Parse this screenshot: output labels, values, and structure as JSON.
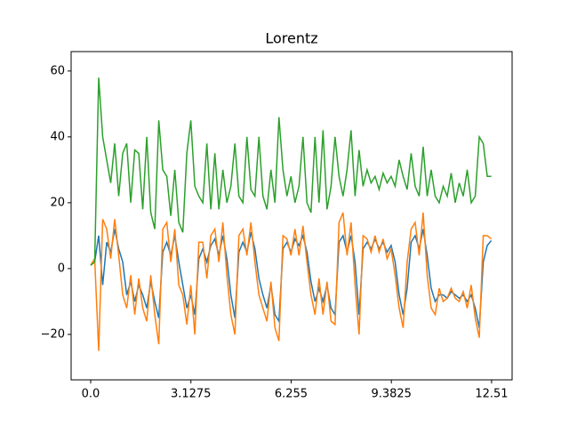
{
  "chart_data": {
    "type": "line",
    "title": "Lorentz",
    "x": [
      0,
      0.125,
      0.25,
      0.375,
      0.5,
      0.625,
      0.75,
      0.875,
      1,
      1.125,
      1.25,
      1.375,
      1.5,
      1.625,
      1.75,
      1.875,
      2,
      2.125,
      2.25,
      2.375,
      2.5,
      2.625,
      2.75,
      2.875,
      3,
      3.125,
      3.25,
      3.375,
      3.5,
      3.625,
      3.75,
      3.875,
      4,
      4.125,
      4.25,
      4.375,
      4.5,
      4.625,
      4.75,
      4.875,
      5,
      5.125,
      5.25,
      5.375,
      5.5,
      5.625,
      5.75,
      5.875,
      6,
      6.125,
      6.25,
      6.375,
      6.5,
      6.625,
      6.75,
      6.875,
      7,
      7.125,
      7.25,
      7.375,
      7.5,
      7.625,
      7.75,
      7.875,
      8,
      8.125,
      8.25,
      8.375,
      8.5,
      8.625,
      8.75,
      8.875,
      9,
      9.125,
      9.25,
      9.375,
      9.5,
      9.625,
      9.75,
      9.875,
      10,
      10.125,
      10.25,
      10.375,
      10.5,
      10.625,
      10.75,
      10.875,
      11,
      11.125,
      11.25,
      11.375,
      11.5,
      11.625,
      11.75,
      11.875,
      12,
      12.125,
      12.25,
      12.375,
      12.5
    ],
    "series": [
      {
        "color": "#1f77b4",
        "values": [
          1,
          2,
          10,
          -5,
          8,
          5,
          12,
          6,
          2,
          -8,
          -4,
          -10,
          -5,
          -8,
          -12,
          -4,
          -10,
          -15,
          5,
          8,
          4,
          10,
          2,
          -5,
          -12,
          -8,
          -14,
          3,
          6,
          2,
          7,
          9,
          4,
          10,
          3,
          -8,
          -15,
          5,
          8,
          5,
          11,
          6,
          -3,
          -8,
          -12,
          -5,
          -14,
          -16,
          6,
          8,
          5,
          9,
          7,
          10,
          5,
          -4,
          -10,
          -6,
          -10,
          -5,
          -12,
          -14,
          8,
          10,
          5,
          10,
          2,
          -14,
          6,
          8,
          6,
          9,
          6,
          8,
          5,
          7,
          2,
          -8,
          -14,
          -6,
          8,
          10,
          6,
          12,
          4,
          -6,
          -10,
          -8,
          -8,
          -9,
          -7,
          -8,
          -9,
          -8,
          -10,
          -8,
          -12,
          -18,
          2,
          7,
          8.5
        ]
      },
      {
        "color": "#ff7f0e",
        "values": [
          1,
          3,
          -25,
          15,
          12,
          3,
          15,
          4,
          -8,
          -12,
          -2,
          -14,
          -3,
          -12,
          -16,
          -2,
          -14,
          -23,
          12,
          14,
          2,
          12,
          -5,
          -8,
          -17,
          -5,
          -20,
          8,
          8,
          -3,
          10,
          12,
          2,
          14,
          -2,
          -14,
          -20,
          10,
          12,
          4,
          14,
          2,
          -8,
          -12,
          -16,
          -4,
          -18,
          -22,
          10,
          9,
          4,
          12,
          4,
          13,
          2,
          -8,
          -14,
          -3,
          -14,
          -4,
          -16,
          -17,
          14,
          17,
          4,
          14,
          -5,
          -20,
          10,
          9,
          5,
          10,
          5,
          9,
          3,
          6,
          -2,
          -12,
          -18,
          2,
          12,
          14,
          4,
          17,
          -2,
          -12,
          -14,
          -6,
          -10,
          -9,
          -6,
          -9,
          -10,
          -7,
          -12,
          -5,
          -15,
          -21,
          10,
          10,
          9
        ]
      },
      {
        "color": "#2ca02c",
        "values": [
          1,
          2,
          58,
          40,
          33,
          26,
          38,
          22,
          35,
          38,
          20,
          36,
          35,
          18,
          40,
          17,
          12,
          45,
          30,
          28,
          16,
          30,
          14,
          11,
          35,
          45,
          25,
          22,
          20,
          38,
          18,
          35,
          18,
          30,
          20,
          25,
          38,
          22,
          20,
          40,
          24,
          22,
          40,
          22,
          18,
          30,
          20,
          46,
          30,
          22,
          28,
          20,
          25,
          40,
          20,
          17,
          40,
          20,
          42,
          18,
          25,
          40,
          28,
          22,
          30,
          42,
          22,
          36,
          25,
          30,
          26,
          28,
          24,
          29,
          26,
          28,
          25,
          33,
          28,
          24,
          35,
          25,
          22,
          37,
          22,
          30,
          22,
          20,
          25,
          22,
          29,
          20,
          26,
          22,
          30,
          20,
          22,
          40,
          38,
          28,
          28
        ]
      }
    ],
    "xlim": [
      -0.61,
      13.15
    ],
    "ylim": [
      -33.8,
      65.9
    ],
    "xticks": [
      {
        "value": 0,
        "label": "0.0"
      },
      3.1275,
      6.255,
      9.3825,
      12.51
    ],
    "yticks": [
      {
        "value": -20,
        "label": "−20"
      },
      0,
      20,
      40,
      60
    ]
  }
}
